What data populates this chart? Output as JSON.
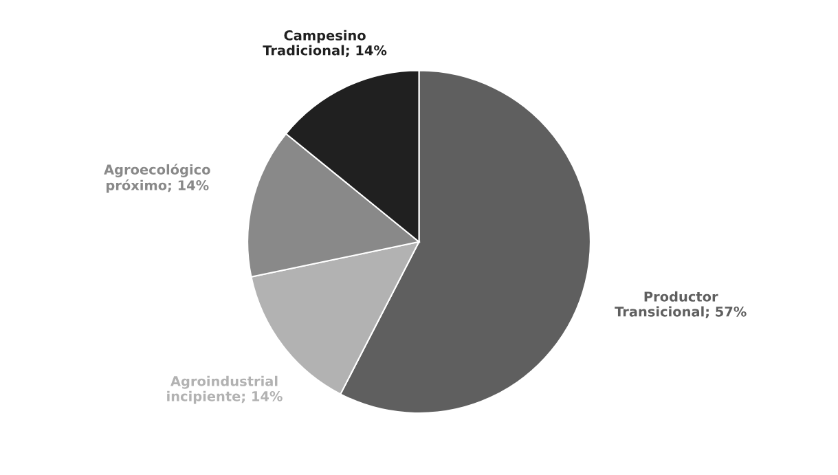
{
  "chart_data": {
    "type": "pie",
    "categories": [
      "Productor Transicional",
      "Agroindustrial incipiente",
      "Agroecológico próximo",
      "Campesino Tradicional"
    ],
    "values": [
      57,
      14,
      14,
      14
    ],
    "value_labels": [
      "57%",
      "14%",
      "14%",
      "14%"
    ],
    "colors": [
      "#5f5f5f",
      "#b2b2b2",
      "#898989",
      "#202020"
    ],
    "legend": false
  }
}
